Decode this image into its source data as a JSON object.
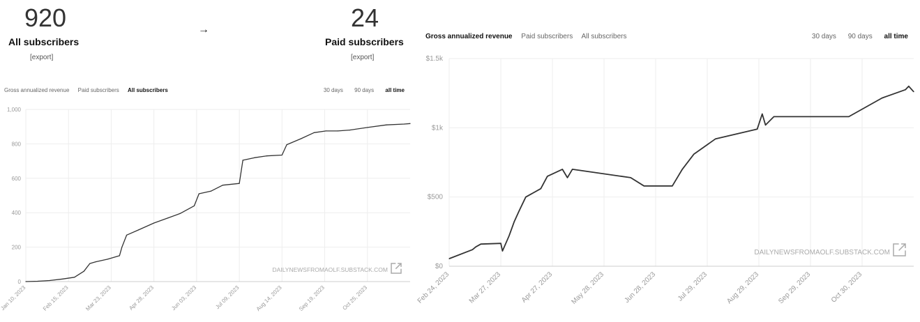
{
  "left": {
    "all_subscribers": {
      "count": "920",
      "label": "All subscribers",
      "export": "[export]"
    },
    "paid_subscribers": {
      "count": "24",
      "label": "Paid subscribers",
      "export": "[export]"
    },
    "arrow": "→",
    "tabs": [
      "Gross annualized revenue",
      "Paid subscribers",
      "All subscribers"
    ],
    "active_tab": "All subscribers",
    "ranges": [
      "30 days",
      "90 days",
      "all time"
    ],
    "active_range": "all time",
    "watermark": "DAILYNEWSFROMAOLF.SUBSTACK.COM"
  },
  "right": {
    "tabs": [
      "Gross annualized revenue",
      "Paid subscribers",
      "All subscribers"
    ],
    "active_tab": "Gross annualized revenue",
    "ranges": [
      "30 days",
      "90 days",
      "all time"
    ],
    "active_range": "all time",
    "watermark": "DAILYNEWSFROMAOLF.SUBSTACK.COM"
  },
  "colors": {
    "line": "#333333",
    "grid": "#eeeeee",
    "tick": "#999999"
  },
  "chart_data": [
    {
      "type": "line",
      "title": "",
      "xlabel": "",
      "ylabel": "",
      "ylim": [
        0,
        1000
      ],
      "xlim": [
        "2023-01-10",
        "2023-11-30"
      ],
      "grid": true,
      "x_ticks": [
        "2023-01-10",
        "2023-02-15",
        "2023-03-23",
        "2023-04-28",
        "2023-06-03",
        "2023-07-09",
        "2023-08-14",
        "2023-09-19",
        "2023-10-25"
      ],
      "x_tick_labels": [
        "Jan 10, 2023",
        "Feb 15, 2023",
        "Mar 23, 2023",
        "Apr 28, 2023",
        "Jun 03, 2023",
        "Jul 09, 2023",
        "Aug 14, 2023",
        "Sep 19, 2023",
        "Oct 25, 2023"
      ],
      "y_ticks": [
        0,
        200,
        400,
        600,
        800,
        1000
      ],
      "y_tick_labels": [
        "0",
        "200",
        "400",
        "600",
        "800",
        "1,000"
      ],
      "series": [
        {
          "x": [
            "2023-01-10",
            "2023-01-20",
            "2023-01-30",
            "2023-02-10",
            "2023-02-20",
            "2023-02-28",
            "2023-03-05",
            "2023-03-10",
            "2023-03-20",
            "2023-03-30",
            "2023-04-01",
            "2023-04-05",
            "2023-04-15",
            "2023-04-28",
            "2023-05-10",
            "2023-05-20",
            "2023-06-01",
            "2023-06-05",
            "2023-06-15",
            "2023-06-25",
            "2023-07-09",
            "2023-07-12",
            "2023-07-22",
            "2023-08-01",
            "2023-08-14",
            "2023-08-18",
            "2023-08-30",
            "2023-09-10",
            "2023-09-20",
            "2023-09-30",
            "2023-10-10",
            "2023-10-25",
            "2023-11-10",
            "2023-11-25",
            "2023-11-30"
          ],
          "values": [
            0,
            2,
            6,
            15,
            25,
            60,
            105,
            115,
            130,
            150,
            200,
            270,
            300,
            340,
            370,
            395,
            440,
            510,
            525,
            560,
            570,
            705,
            720,
            730,
            735,
            795,
            830,
            865,
            875,
            875,
            880,
            895,
            910,
            915,
            918
          ]
        }
      ]
    },
    {
      "type": "line",
      "title": "",
      "xlabel": "",
      "ylabel": "",
      "ylim": [
        0,
        1500
      ],
      "xlim": [
        "2023-02-24",
        "2023-11-30"
      ],
      "grid": true,
      "x_ticks": [
        "2023-02-24",
        "2023-03-27",
        "2023-04-27",
        "2023-05-28",
        "2023-06-28",
        "2023-07-29",
        "2023-08-29",
        "2023-09-29",
        "2023-10-30"
      ],
      "x_tick_labels": [
        "Feb 24, 2023",
        "Mar 27, 2023",
        "Apr 27, 2023",
        "May 28, 2023",
        "Jun 28, 2023",
        "Jul 29, 2023",
        "Aug 29, 2023",
        "Sep 29, 2023",
        "Oct 30, 2023"
      ],
      "y_ticks": [
        0,
        500,
        1000,
        1500
      ],
      "y_tick_labels": [
        "$0",
        "$500",
        "$1k",
        "$1.5k"
      ],
      "series": [
        {
          "x": [
            "2023-02-24",
            "2023-03-10",
            "2023-03-12",
            "2023-03-15",
            "2023-03-27",
            "2023-03-28",
            "2023-04-01",
            "2023-04-04",
            "2023-04-07",
            "2023-04-11",
            "2023-04-20",
            "2023-04-24",
            "2023-05-03",
            "2023-05-06",
            "2023-05-09",
            "2023-06-13",
            "2023-06-21",
            "2023-07-08",
            "2023-07-11",
            "2023-07-14",
            "2023-07-21",
            "2023-08-03",
            "2023-08-28",
            "2023-08-31",
            "2023-09-02",
            "2023-09-07",
            "2023-10-22",
            "2023-11-11",
            "2023-11-25",
            "2023-11-27",
            "2023-11-30"
          ],
          "values": [
            55,
            120,
            140,
            160,
            165,
            110,
            220,
            320,
            400,
            500,
            560,
            650,
            700,
            640,
            700,
            640,
            580,
            580,
            640,
            700,
            810,
            920,
            990,
            1100,
            1020,
            1080,
            1080,
            1215,
            1275,
            1300,
            1260
          ]
        }
      ]
    }
  ]
}
